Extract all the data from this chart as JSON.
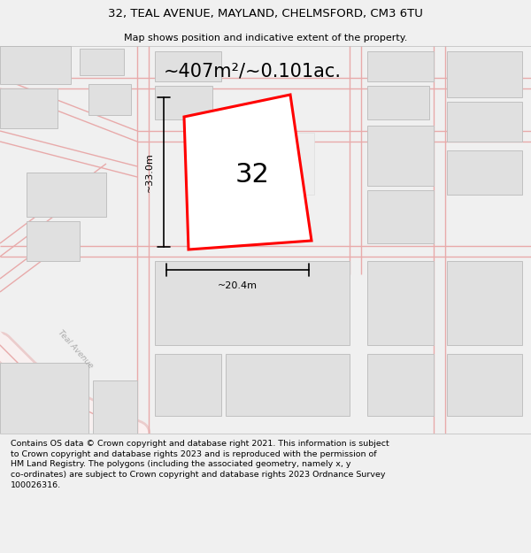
{
  "title": "32, TEAL AVENUE, MAYLAND, CHELMSFORD, CM3 6TU",
  "subtitle": "Map shows position and indicative extent of the property.",
  "area_label": "~407m²/~0.101ac.",
  "property_number": "32",
  "width_label": "~20.4m",
  "height_label": "~33.0m",
  "background_color": "#f0f0f0",
  "map_bg_color": "#ffffff",
  "footer_text": "Contains OS data © Crown copyright and database right 2021. This information is subject to Crown copyright and database rights 2023 and is reproduced with the permission of HM Land Registry. The polygons (including the associated geometry, namely x, y co-ordinates) are subject to Crown copyright and database rights 2023 Ordnance Survey 100026316.",
  "road_edge": "#e8aaaa",
  "building_fill": "#e0e0e0",
  "building_stroke": "#c0c0c0",
  "fig_width": 6.0,
  "fig_height": 6.25,
  "dpi": 100
}
